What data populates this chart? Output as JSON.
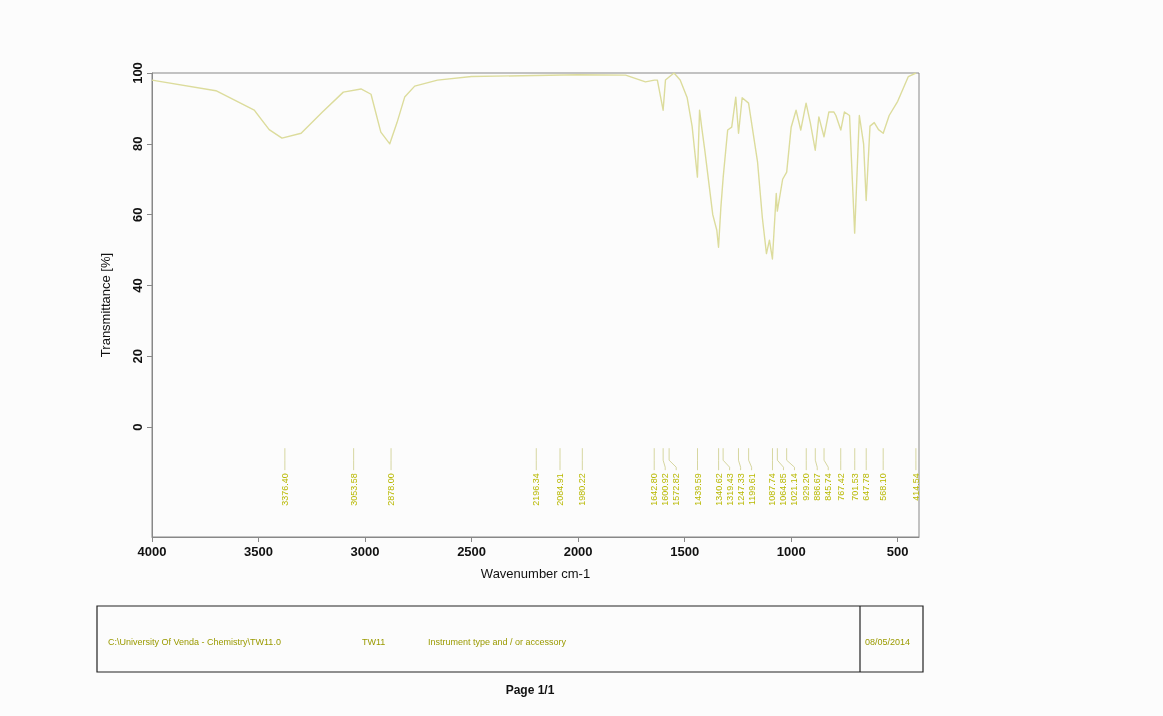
{
  "chart_data": {
    "type": "line",
    "xlabel": "Wavenumber cm-1",
    "ylabel": "Transmittance [%]",
    "x": [
      4000,
      3700,
      3520,
      3450,
      3390,
      3300,
      3200,
      3102,
      3019,
      2972,
      2926,
      2884,
      2850,
      2814,
      2767,
      2660,
      2500,
      2200,
      2000,
      1777,
      1684,
      1642,
      1628,
      1601,
      1590,
      1550,
      1521,
      1488,
      1465,
      1440,
      1430,
      1420,
      1405,
      1368,
      1349,
      1341,
      1330,
      1319,
      1298,
      1279,
      1260,
      1247,
      1230,
      1200,
      1158,
      1135,
      1116,
      1102,
      1088,
      1070,
      1065,
      1040,
      1021,
      1000,
      977,
      955,
      930,
      910,
      887,
      870,
      846,
      823,
      800,
      790,
      767,
      750,
      726,
      702,
      680,
      660,
      648,
      630,
      610,
      590,
      568,
      540,
      500,
      450,
      414
    ],
    "series": [
      {
        "color": "#dcdc9c",
        "values": [
          98,
          95,
          89.5,
          84,
          81.6,
          83,
          89,
          94.6,
          95.5,
          94,
          83.3,
          80,
          86,
          93.2,
          96.3,
          98,
          99,
          99.3,
          99.5,
          99.4,
          97.5,
          98,
          98,
          89.5,
          98,
          100,
          98,
          93,
          85,
          70.6,
          89.5,
          84.7,
          78,
          60,
          55.6,
          50.8,
          62,
          70.6,
          83.9,
          84.7,
          93.2,
          83,
          93,
          91.5,
          75,
          59,
          49,
          52.8,
          47.5,
          66,
          61,
          70,
          72,
          84.7,
          89.5,
          83.9,
          91.5,
          85.9,
          78.2,
          87.6,
          82,
          89,
          89,
          88,
          83.9,
          89,
          88,
          54.8,
          88,
          80,
          64,
          85,
          86,
          84,
          83,
          88,
          92,
          99,
          100
        ]
      }
    ],
    "xlim": [
      4000,
      400
    ],
    "xticks": [
      4000,
      3500,
      3000,
      2500,
      2000,
      1500,
      1000,
      500
    ],
    "ylim": [
      -31,
      100
    ],
    "yticks": [
      0,
      20,
      40,
      60,
      80,
      100
    ],
    "grid": false,
    "marker": "none",
    "line_style": "solid",
    "ref_lines": [
      {
        "axis": "x",
        "value": 3376.4,
        "label": "3376.40"
      },
      {
        "axis": "x",
        "value": 3053.58,
        "label": "3053.58"
      },
      {
        "axis": "x",
        "value": 2878.0,
        "label": "2878.00"
      },
      {
        "axis": "x",
        "value": 2196.34,
        "label": "2196.34"
      },
      {
        "axis": "x",
        "value": 2084.91,
        "label": "2084.91"
      },
      {
        "axis": "x",
        "value": 1980.22,
        "label": "1980.22"
      },
      {
        "axis": "x",
        "value": 1642.8,
        "label": "1642.80"
      },
      {
        "axis": "x",
        "value": 1600.92,
        "label": "1600.92"
      },
      {
        "axis": "x",
        "value": 1572.82,
        "label": "1572.82"
      },
      {
        "axis": "x",
        "value": 1439.59,
        "label": "1439.59"
      },
      {
        "axis": "x",
        "value": 1340.62,
        "label": "1340.62"
      },
      {
        "axis": "x",
        "value": 1319.43,
        "label": "1319.43"
      },
      {
        "axis": "x",
        "value": 1247.33,
        "label": "1247.33"
      },
      {
        "axis": "x",
        "value": 1199.61,
        "label": "1199.61"
      },
      {
        "axis": "x",
        "value": 1087.74,
        "label": "1087.74"
      },
      {
        "axis": "x",
        "value": 1064.85,
        "label": "1064.85"
      },
      {
        "axis": "x",
        "value": 1021.14,
        "label": "1021.14"
      },
      {
        "axis": "x",
        "value": 929.2,
        "label": "929.20"
      },
      {
        "axis": "x",
        "value": 886.67,
        "label": "886.67"
      },
      {
        "axis": "x",
        "value": 845.74,
        "label": "845.74"
      },
      {
        "axis": "x",
        "value": 767.42,
        "label": "767.42"
      },
      {
        "axis": "x",
        "value": 701.53,
        "label": "701.53"
      },
      {
        "axis": "x",
        "value": 647.78,
        "label": "647.78"
      },
      {
        "axis": "x",
        "value": 568.1,
        "label": "568.10"
      },
      {
        "axis": "x",
        "value": 414.54,
        "label": "414.54"
      }
    ],
    "annotations": [
      "C:\\University Of Venda - Chemistry\\TW11.0",
      "TW11",
      "Instrument type and / or accessory",
      "08/05/2014",
      "Page 1/1"
    ]
  }
}
